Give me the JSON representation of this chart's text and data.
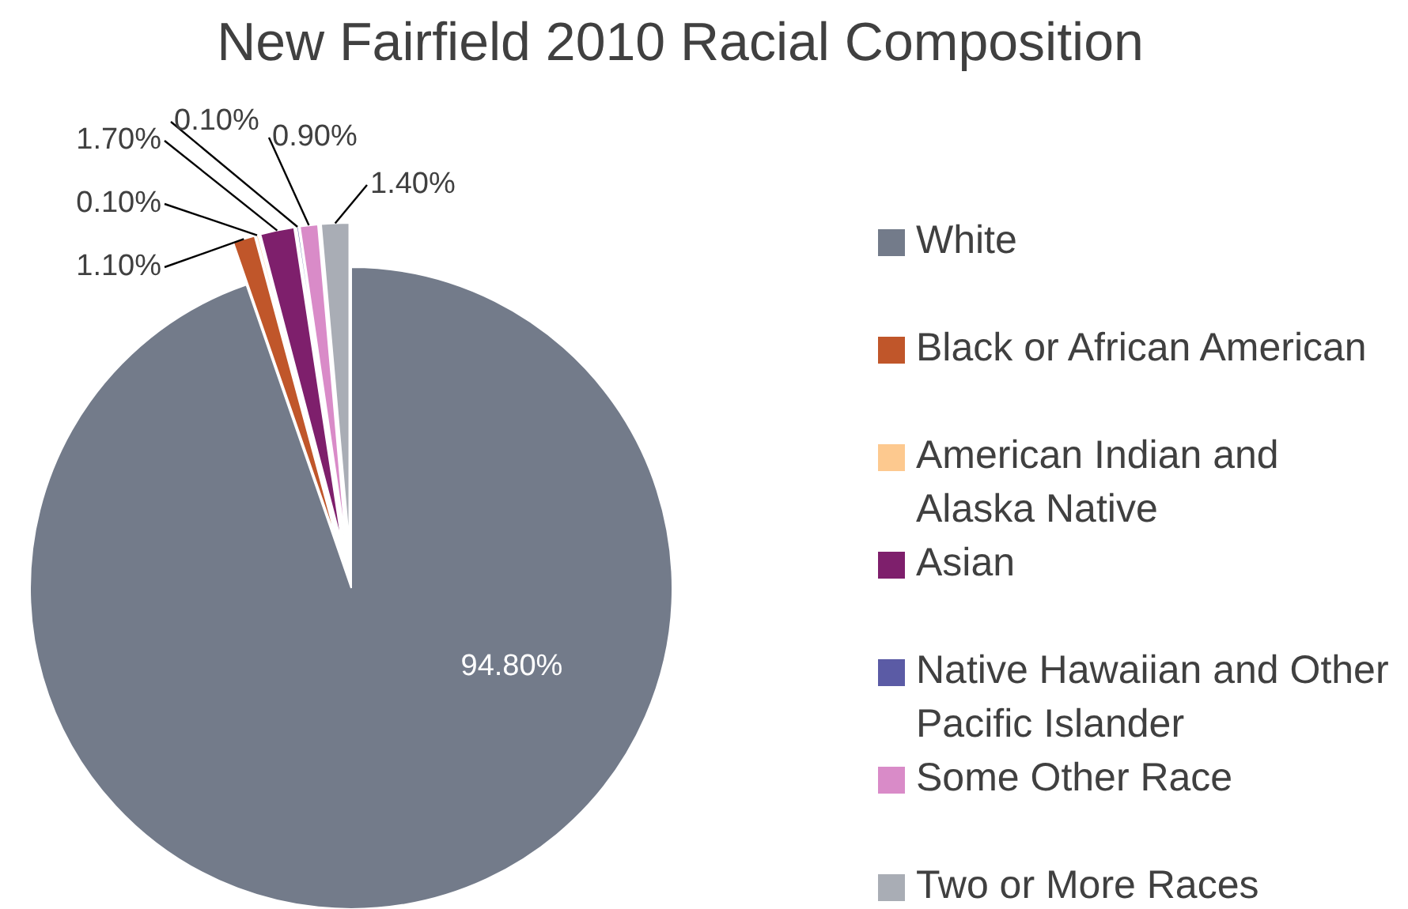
{
  "chart_data": {
    "type": "pie",
    "title": "New Fairfield 2010 Racial Composition",
    "categories": [
      "White",
      "Black or African American",
      "American Indian and Alaska Native",
      "Asian",
      "Native Hawaiian and Other Pacific Islander",
      "Some Other Race",
      "Two or More Races"
    ],
    "values": [
      94.8,
      1.1,
      0.1,
      1.7,
      0.1,
      0.9,
      1.4
    ],
    "value_labels": [
      "94.80%",
      "1.10%",
      "0.10%",
      "1.70%",
      "0.10%",
      "0.90%",
      "1.40%"
    ],
    "colors": [
      "#737b8a",
      "#c0562a",
      "#fdc98f",
      "#7e1f6c",
      "#5b5ba5",
      "#d98bc8",
      "#a9adb5"
    ],
    "legend": "right"
  }
}
